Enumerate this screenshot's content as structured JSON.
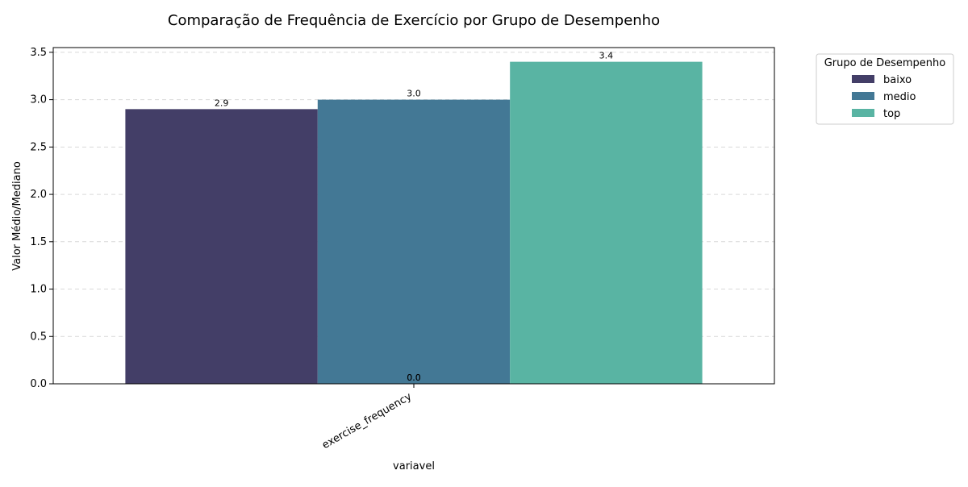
{
  "chart_data": {
    "type": "bar",
    "title": "Comparação de Frequência de Exercício por Grupo de Desempenho",
    "xlabel": "variavel",
    "ylabel": "Valor Médio/Mediano",
    "categories": [
      "exercise_frequency"
    ],
    "series": [
      {
        "name": "baixo",
        "values": [
          2.9
        ],
        "color": "#433E67"
      },
      {
        "name": "medio",
        "values": [
          3.0
        ],
        "color": "#437895"
      },
      {
        "name": "top",
        "values": [
          3.4
        ],
        "color": "#59B4A3"
      }
    ],
    "bar_labels": [
      "2.9",
      "3.0",
      "3.4"
    ],
    "extra_labels": [
      "0.0",
      "0.0"
    ],
    "ylim": [
      0,
      3.55
    ],
    "yticks": [
      "0.0",
      "0.5",
      "1.0",
      "1.5",
      "2.0",
      "2.5",
      "3.0",
      "3.5"
    ],
    "grid": "y-dashed",
    "legend": {
      "title": "Grupo de Desempenho",
      "placement": "outside-top-right"
    }
  }
}
